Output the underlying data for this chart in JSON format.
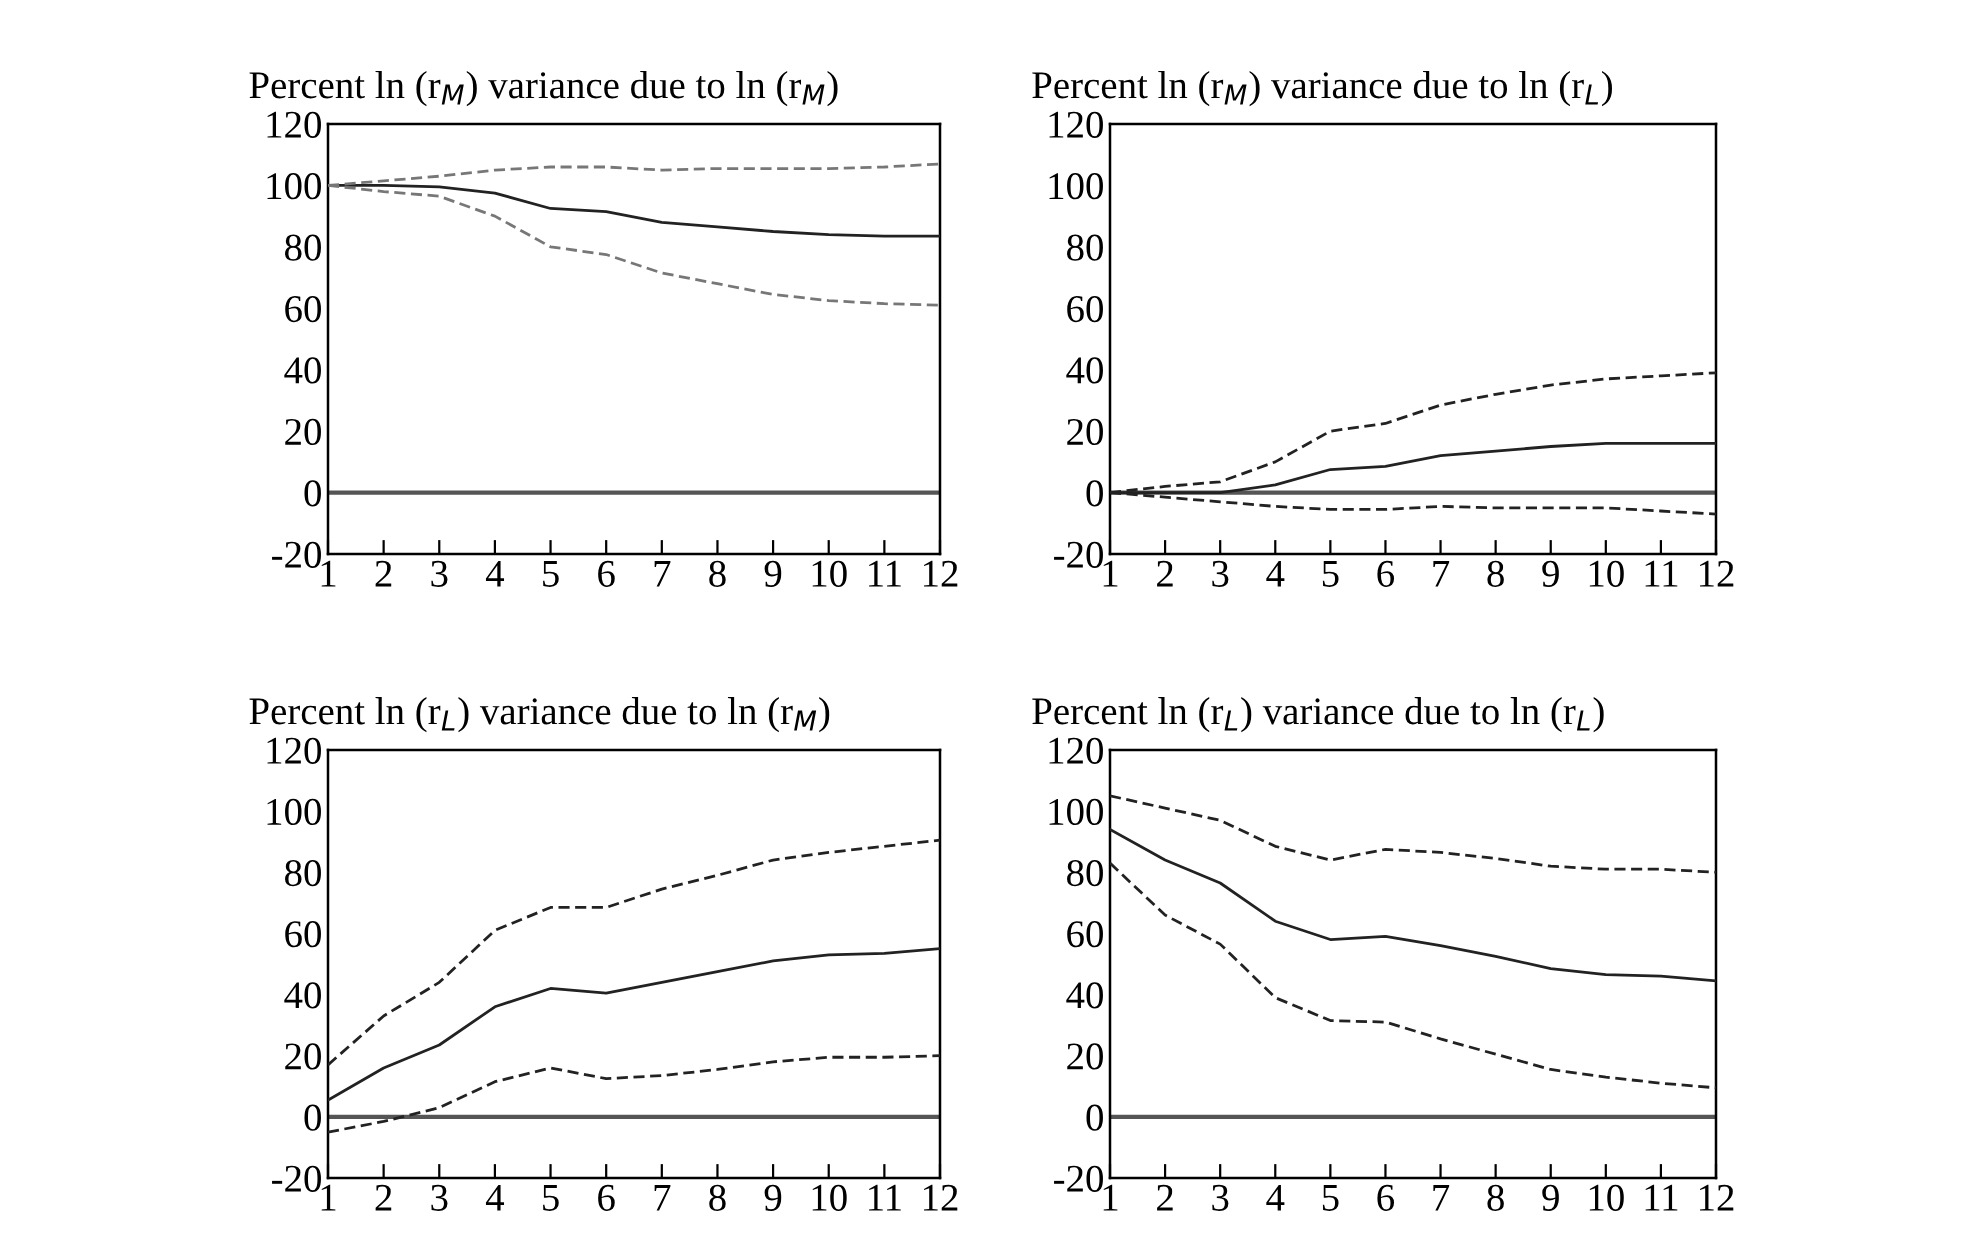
{
  "chart_data": [
    {
      "type": "line",
      "title": "Percent ln (r$_{M}$) variance due to ln (r$_{M}$)",
      "x": [
        1,
        2,
        3,
        4,
        5,
        6,
        7,
        8,
        9,
        10,
        11,
        12
      ],
      "xlim": [
        1,
        12
      ],
      "xticks": [
        1,
        2,
        3,
        4,
        5,
        6,
        7,
        8,
        9,
        10,
        11,
        12
      ],
      "ylim": [
        -20,
        120
      ],
      "yticks": [
        -20,
        0,
        20,
        40,
        60,
        80,
        100,
        120
      ],
      "grid": false,
      "legend": false,
      "marker": "none",
      "ref_lines": [
        {
          "axis": "y",
          "value": 0,
          "color": "#555555",
          "line_style": "solid"
        }
      ],
      "series": [
        {
          "color": "#222222",
          "line_style": "solid",
          "values": [
            100,
            100,
            99.5,
            97.5,
            92.5,
            91.5,
            88,
            86.5,
            85,
            84,
            83.5,
            83.5
          ]
        },
        {
          "color": "#777777",
          "line_style": "dashed",
          "values": [
            100,
            101.5,
            103,
            105,
            106,
            106,
            105,
            105.5,
            105.5,
            105.5,
            106,
            107
          ]
        },
        {
          "color": "#777777",
          "line_style": "dashed",
          "values": [
            100,
            98,
            96.5,
            90,
            80,
            77.5,
            71.5,
            68,
            64.5,
            62.5,
            61.5,
            61
          ]
        }
      ]
    },
    {
      "type": "line",
      "title": "Percent ln (r$_{M}$) variance due to ln (r$_{L}$)",
      "x": [
        1,
        2,
        3,
        4,
        5,
        6,
        7,
        8,
        9,
        10,
        11,
        12
      ],
      "xlim": [
        1,
        12
      ],
      "xticks": [
        1,
        2,
        3,
        4,
        5,
        6,
        7,
        8,
        9,
        10,
        11,
        12
      ],
      "ylim": [
        -20,
        120
      ],
      "yticks": [
        -20,
        0,
        20,
        40,
        60,
        80,
        100,
        120
      ],
      "grid": false,
      "legend": false,
      "marker": "none",
      "ref_lines": [
        {
          "axis": "y",
          "value": 0,
          "color": "#555555",
          "line_style": "solid"
        }
      ],
      "series": [
        {
          "color": "#222222",
          "line_style": "solid",
          "values": [
            0,
            0,
            0,
            2.5,
            7.5,
            8.5,
            12,
            13.5,
            15,
            16,
            16,
            16
          ]
        },
        {
          "color": "#222222",
          "line_style": "dashed",
          "values": [
            0,
            2,
            3.5,
            10,
            20,
            22.5,
            28.5,
            32,
            35,
            37,
            38,
            39
          ]
        },
        {
          "color": "#222222",
          "line_style": "dashed",
          "values": [
            0,
            -1.5,
            -3,
            -4.5,
            -5.5,
            -5.5,
            -4.5,
            -5,
            -5,
            -5,
            -6,
            -7
          ]
        }
      ]
    },
    {
      "type": "line",
      "title": "Percent ln (r$_{L}$) variance due to ln (r$_{M}$)",
      "x": [
        1,
        2,
        3,
        4,
        5,
        6,
        7,
        8,
        9,
        10,
        11,
        12
      ],
      "xlim": [
        1,
        12
      ],
      "xticks": [
        1,
        2,
        3,
        4,
        5,
        6,
        7,
        8,
        9,
        10,
        11,
        12
      ],
      "ylim": [
        -20,
        120
      ],
      "yticks": [
        -20,
        0,
        20,
        40,
        60,
        80,
        100,
        120
      ],
      "grid": false,
      "legend": false,
      "marker": "none",
      "ref_lines": [
        {
          "axis": "y",
          "value": 0,
          "color": "#555555",
          "line_style": "solid"
        }
      ],
      "series": [
        {
          "color": "#222222",
          "line_style": "solid",
          "values": [
            5.5,
            16,
            23.5,
            36,
            42,
            40.5,
            44,
            47.5,
            51,
            53,
            53.5,
            55
          ]
        },
        {
          "color": "#222222",
          "line_style": "dashed",
          "values": [
            17,
            33,
            44,
            61,
            68.5,
            68.5,
            74.5,
            79,
            84,
            86.5,
            88.5,
            90.5
          ]
        },
        {
          "color": "#222222",
          "line_style": "dashed",
          "values": [
            -5,
            -1.5,
            3,
            11.5,
            16,
            12.5,
            13.5,
            15.5,
            18,
            19.5,
            19.5,
            20
          ]
        }
      ]
    },
    {
      "type": "line",
      "title": "Percent ln (r$_{L}$) variance due to ln (r$_{L}$)",
      "x": [
        1,
        2,
        3,
        4,
        5,
        6,
        7,
        8,
        9,
        10,
        11,
        12
      ],
      "xlim": [
        1,
        12
      ],
      "xticks": [
        1,
        2,
        3,
        4,
        5,
        6,
        7,
        8,
        9,
        10,
        11,
        12
      ],
      "ylim": [
        -20,
        120
      ],
      "yticks": [
        -20,
        0,
        20,
        40,
        60,
        80,
        100,
        120
      ],
      "grid": false,
      "legend": false,
      "marker": "none",
      "ref_lines": [
        {
          "axis": "y",
          "value": 0,
          "color": "#555555",
          "line_style": "solid"
        }
      ],
      "series": [
        {
          "color": "#222222",
          "line_style": "solid",
          "values": [
            94,
            84,
            76.5,
            64,
            58,
            59,
            56,
            52.5,
            48.5,
            46.5,
            46,
            44.5
          ]
        },
        {
          "color": "#222222",
          "line_style": "dashed",
          "values": [
            105,
            101,
            97,
            88.5,
            84,
            87.5,
            86.5,
            84.5,
            82,
            81,
            81,
            80
          ]
        },
        {
          "color": "#222222",
          "line_style": "dashed",
          "values": [
            83,
            66,
            56.5,
            39,
            31.5,
            31,
            25.5,
            20.5,
            15.5,
            13,
            11,
            9.5
          ]
        }
      ]
    }
  ]
}
